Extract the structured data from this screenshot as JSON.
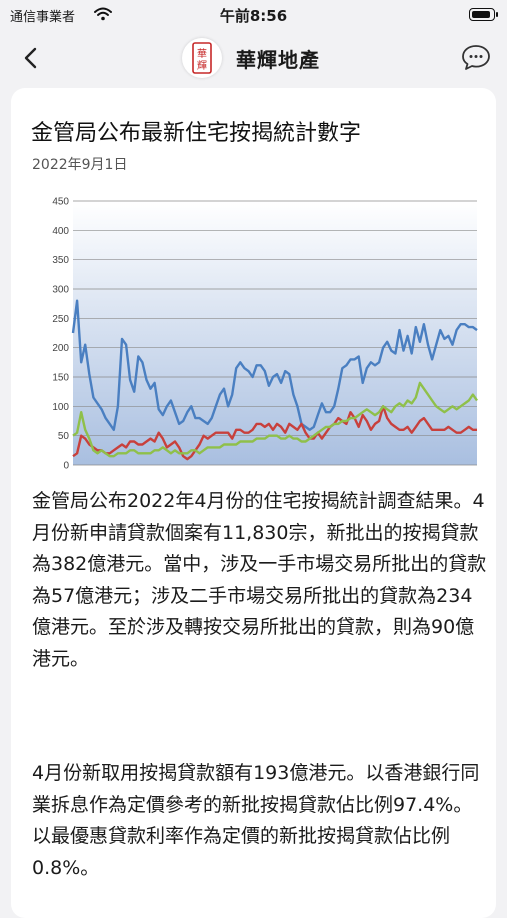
{
  "status_bar": {
    "carrier": "通信事業者",
    "time": "午前8:56",
    "battery_level": 1.0
  },
  "nav": {
    "back_icon": "chevron-left-icon",
    "logo_text": "華輝",
    "brand": "華輝地產",
    "chat_icon": "chat-bubble-icon"
  },
  "article": {
    "title": "金管局公布最新住宅按揭統計數字",
    "date": "2022年9月1日",
    "paragraph1": "金管局公布2022年4月份的住宅按揭統計調查結果。4月份新申請貸款個案有11,830宗，新批出的按揭貸款為382億港元。當中，涉及一手市場交易所批出的貸款為57億港元；涉及二手市場交易所批出的貸款為234億港元。至於涉及轉按交易所批出的貸款，則為90億港元。",
    "paragraph2": "4月份新取用按揭貸款額有193億港元。以香港銀行同業拆息作為定價參考的新批按揭貸款佔比例97.4%。以最優惠貸款利率作為定價的新批按揭貸款佔比例0.8%。"
  },
  "chart_data": {
    "type": "line",
    "ylim": [
      0,
      450
    ],
    "yticks": [
      "450",
      "400",
      "350",
      "300",
      "250",
      "200",
      "150",
      "100",
      "50",
      "0"
    ],
    "grid": true,
    "legend": "none",
    "x": [
      1,
      2,
      3,
      4,
      5,
      6,
      7,
      8,
      9,
      10,
      11,
      12,
      13,
      14,
      15,
      16,
      17,
      18,
      19,
      20,
      21,
      22,
      23,
      24,
      25,
      26,
      27,
      28,
      29,
      30,
      31,
      32,
      33,
      34,
      35,
      36,
      37,
      38,
      39,
      40,
      41,
      42,
      43,
      44,
      45,
      46,
      47,
      48,
      49,
      50,
      51,
      52,
      53,
      54,
      55,
      56,
      57,
      58,
      59,
      60,
      61,
      62,
      63,
      64,
      65,
      66,
      67,
      68,
      69,
      70,
      71,
      72,
      73,
      74,
      75,
      76,
      77,
      78,
      79,
      80,
      81,
      82,
      83,
      84,
      85,
      86,
      87,
      88,
      89,
      90,
      91,
      92,
      93,
      94,
      95,
      96,
      97,
      98,
      99,
      100
    ],
    "series": [
      {
        "color": "#4a7fc1",
        "values": [
          225,
          280,
          175,
          205,
          155,
          115,
          105,
          95,
          80,
          70,
          60,
          100,
          215,
          205,
          145,
          125,
          185,
          175,
          145,
          130,
          140,
          95,
          85,
          100,
          110,
          90,
          70,
          75,
          90,
          100,
          80,
          80,
          75,
          70,
          80,
          100,
          120,
          130,
          100,
          120,
          165,
          175,
          165,
          160,
          150,
          170,
          170,
          160,
          135,
          150,
          155,
          140,
          160,
          155,
          120,
          100,
          70,
          65,
          60,
          65,
          85,
          105,
          90,
          90,
          100,
          130,
          165,
          170,
          180,
          180,
          185,
          140,
          165,
          175,
          170,
          175,
          200,
          210,
          195,
          190,
          230,
          195,
          220,
          190,
          235,
          210,
          240,
          205,
          180,
          205,
          230,
          215,
          220,
          205,
          230,
          240,
          240,
          235,
          235,
          230
        ]
      },
      {
        "color": "#c8403c",
        "values": [
          15,
          20,
          50,
          45,
          35,
          30,
          25,
          25,
          20,
          20,
          25,
          30,
          35,
          30,
          40,
          40,
          35,
          35,
          40,
          45,
          40,
          55,
          45,
          30,
          35,
          40,
          30,
          15,
          10,
          15,
          25,
          35,
          50,
          45,
          50,
          55,
          55,
          55,
          55,
          45,
          60,
          60,
          55,
          55,
          60,
          70,
          70,
          65,
          70,
          60,
          70,
          65,
          55,
          70,
          65,
          60,
          70,
          55,
          45,
          45,
          55,
          45,
          55,
          65,
          70,
          80,
          75,
          70,
          90,
          80,
          65,
          85,
          75,
          60,
          70,
          75,
          100,
          80,
          70,
          65,
          60,
          60,
          65,
          55,
          65,
          75,
          80,
          70,
          60,
          60,
          60,
          60,
          65,
          60,
          55,
          55,
          60,
          65,
          60,
          60
        ]
      },
      {
        "color": "#8fc04a",
        "values": [
          50,
          55,
          90,
          60,
          45,
          25,
          20,
          25,
          20,
          15,
          15,
          20,
          20,
          20,
          25,
          25,
          20,
          20,
          20,
          20,
          25,
          25,
          30,
          25,
          20,
          25,
          20,
          20,
          20,
          25,
          25,
          20,
          25,
          30,
          30,
          30,
          30,
          35,
          35,
          35,
          35,
          40,
          40,
          40,
          40,
          45,
          45,
          45,
          50,
          50,
          50,
          45,
          45,
          50,
          45,
          45,
          40,
          40,
          45,
          50,
          55,
          60,
          65,
          65,
          70,
          70,
          75,
          75,
          80,
          80,
          85,
          90,
          95,
          90,
          85,
          90,
          100,
          95,
          90,
          100,
          105,
          100,
          110,
          105,
          115,
          140,
          130,
          120,
          110,
          100,
          95,
          90,
          95,
          100,
          95,
          100,
          105,
          110,
          120,
          110
        ]
      }
    ]
  }
}
